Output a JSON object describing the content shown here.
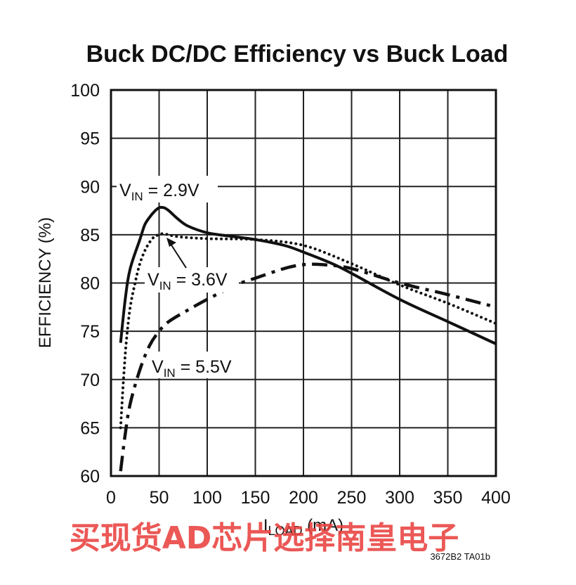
{
  "chart_data": {
    "type": "line",
    "title": "Buck DC/DC Efficiency vs Buck Load",
    "xlabel": "I",
    "xlabel_sub": "LOAD",
    "xlabel_unit": " (mA)",
    "ylabel": "EFFICIENCY (%)",
    "xlim": [
      0,
      400
    ],
    "ylim": [
      60,
      100
    ],
    "x_ticks": [
      0,
      50,
      100,
      150,
      200,
      250,
      300,
      350,
      400
    ],
    "y_ticks": [
      60,
      65,
      70,
      75,
      80,
      85,
      90,
      95,
      100
    ],
    "grid": true,
    "legend": "none",
    "series": [
      {
        "label_main": "V",
        "label_sub": "IN",
        "label_value": " = 2.9V",
        "style": "solid",
        "points": [
          [
            10,
            73.8
          ],
          [
            15,
            78.5
          ],
          [
            20,
            81.5
          ],
          [
            30,
            84.5
          ],
          [
            35,
            86
          ],
          [
            40,
            86.8
          ],
          [
            45,
            87.4
          ],
          [
            50,
            87.8
          ],
          [
            55,
            87.8
          ],
          [
            60,
            87.5
          ],
          [
            70,
            86.6
          ],
          [
            80,
            85.9
          ],
          [
            100,
            85.2
          ],
          [
            120,
            84.9
          ],
          [
            150,
            84.5
          ],
          [
            180,
            83.9
          ],
          [
            200,
            83.2
          ],
          [
            230,
            82.0
          ],
          [
            250,
            81.0
          ],
          [
            300,
            78.3
          ],
          [
            350,
            76.0
          ],
          [
            400,
            73.7
          ]
        ]
      },
      {
        "label_main": "V",
        "label_sub": "IN",
        "label_value": " = 3.6V",
        "style": "dotted",
        "points": [
          [
            10,
            65.0
          ],
          [
            13,
            70.0
          ],
          [
            16,
            74.0
          ],
          [
            20,
            77.5
          ],
          [
            25,
            80.0
          ],
          [
            30,
            82.0
          ],
          [
            35,
            83.3
          ],
          [
            40,
            84.2
          ],
          [
            45,
            84.8
          ],
          [
            50,
            85.0
          ],
          [
            55,
            85.1
          ],
          [
            70,
            84.8
          ],
          [
            100,
            84.6
          ],
          [
            150,
            84.5
          ],
          [
            200,
            83.9
          ],
          [
            250,
            82.0
          ],
          [
            300,
            79.8
          ],
          [
            350,
            77.9
          ],
          [
            400,
            75.8
          ]
        ]
      },
      {
        "label_main": "V",
        "label_sub": "IN",
        "label_value": " = 5.5V",
        "style": "dashdot",
        "points": [
          [
            10,
            60.5
          ],
          [
            15,
            64.5
          ],
          [
            20,
            67.5
          ],
          [
            30,
            71.0
          ],
          [
            40,
            73.5
          ],
          [
            50,
            75.0
          ],
          [
            60,
            76.0
          ],
          [
            80,
            77.2
          ],
          [
            100,
            78.3
          ],
          [
            130,
            79.8
          ],
          [
            150,
            80.5
          ],
          [
            180,
            81.5
          ],
          [
            200,
            81.9
          ],
          [
            220,
            81.9
          ],
          [
            250,
            81.5
          ],
          [
            300,
            80.0
          ],
          [
            350,
            78.8
          ],
          [
            400,
            77.5
          ]
        ]
      }
    ]
  },
  "figure_code": "3672B2 TA01b",
  "watermark": "买现货AD芯片选择南皇电子"
}
